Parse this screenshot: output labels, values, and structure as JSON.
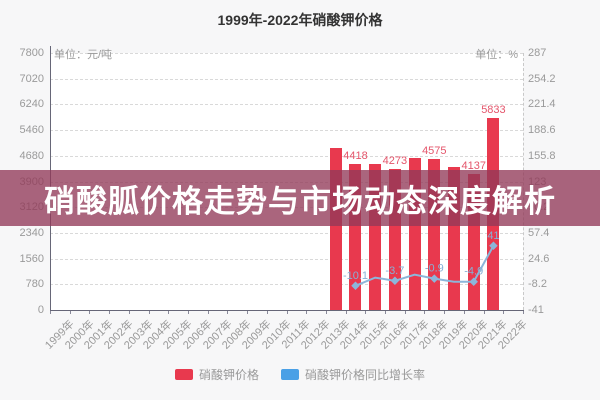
{
  "title": "1999年-2022年硝酸钾价格",
  "banner": {
    "text": "硝酸胍价格走势与市场动态深度解析",
    "bg_color": "rgba(146,58,88,0.78)"
  },
  "axes": {
    "left_unit": "单位：元/吨",
    "right_unit": "单位：%"
  },
  "legend": {
    "items": [
      {
        "label": "硝酸钾价格",
        "color": "#e8394e"
      },
      {
        "label": "硝酸钾价格同比增长率",
        "color": "#4aa0e6"
      }
    ]
  },
  "chart_data": {
    "type": "bar",
    "combo": "bar+line",
    "title": "1999年-2022年硝酸钾价格",
    "grid": "horizontal-dashed",
    "legend_position": "bottom",
    "categories": [
      "1999年",
      "2000年",
      "2001年",
      "2002年",
      "2003年",
      "2004年",
      "2005年",
      "2006年",
      "2007年",
      "2008年",
      "2009年",
      "2010年",
      "2011年",
      "2012年",
      "2013年",
      "2014年",
      "2015年",
      "2016年",
      "2017年",
      "2018年",
      "2019年",
      "2020年",
      "2021年",
      "2022年"
    ],
    "left_axis": {
      "unit": "单位：元/吨",
      "min": 0,
      "max": 7800,
      "ticks_top_to_bottom": [
        "7800",
        "7020",
        "6240",
        "5460",
        "4680",
        "3900",
        "3120",
        "2340",
        "1560",
        "780",
        "0"
      ]
    },
    "right_axis": {
      "unit": "单位：%",
      "min": -41,
      "max": 287,
      "ticks_top_to_bottom": [
        "287",
        "254.2",
        "221.4",
        "188.6",
        "155.8",
        "123",
        "90.2",
        "57.4",
        "24.6",
        "-8.2",
        "-41"
      ]
    },
    "series": [
      {
        "name": "硝酸钾价格",
        "type": "bar",
        "axis": "left",
        "color": "#e8394e",
        "label_color": "#e4556b",
        "data": [
          {
            "category": "2013年",
            "value": 4914,
            "label": null
          },
          {
            "category": "2014年",
            "value": 4418,
            "label": "4418"
          },
          {
            "category": "2015年",
            "value": 4437,
            "label": null
          },
          {
            "category": "2016年",
            "value": 4273,
            "label": "4273"
          },
          {
            "category": "2017年",
            "value": 4617,
            "label": null
          },
          {
            "category": "2018年",
            "value": 4575,
            "label": "4575"
          },
          {
            "category": "2019年",
            "value": 4350,
            "label": null
          },
          {
            "category": "2020年",
            "value": 4137,
            "label": "4137"
          },
          {
            "category": "2021年",
            "value": 5833,
            "label": "5833"
          }
        ]
      },
      {
        "name": "硝酸钾价格同比增长率",
        "type": "line",
        "axis": "right",
        "color": "#8cb6da",
        "label_color": "#86b0d6",
        "data": [
          {
            "category": "2014年",
            "value": -10.1,
            "label": "-10.1"
          },
          {
            "category": "2015年",
            "value": 0.4,
            "label": null
          },
          {
            "category": "2016年",
            "value": -3.7,
            "label": "-3.7"
          },
          {
            "category": "2017年",
            "value": 4.1,
            "label": null
          },
          {
            "category": "2018年",
            "value": -0.9,
            "label": "-0.9"
          },
          {
            "category": "2019年",
            "value": -4.9,
            "label": null
          },
          {
            "category": "2020年",
            "value": -4.9,
            "label": "-4.9"
          },
          {
            "category": "2021年",
            "value": 41,
            "label": "41"
          }
        ]
      }
    ]
  }
}
